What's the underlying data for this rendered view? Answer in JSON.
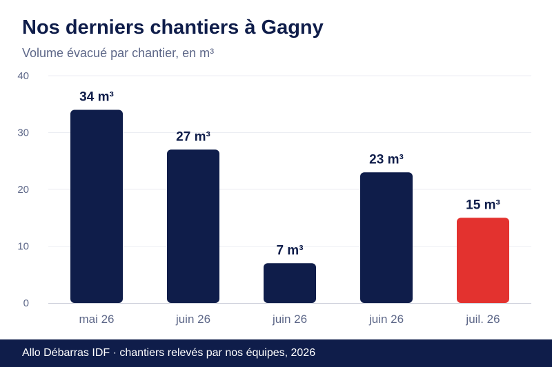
{
  "header": {
    "title": "Nos derniers chantiers à Gagny",
    "subtitle": "Volume évacué par chantier, en m³"
  },
  "footer": {
    "text": "Allo Débarras IDF · chantiers relevés par nos équipes, 2026"
  },
  "colors": {
    "bar": "#0f1d4a",
    "highlight": "#e3322f",
    "grid": "#eceef3",
    "axis": "#c9ccd8",
    "tick_text": "#5d6788",
    "label_text": "#0f1d4a"
  },
  "chart_data": {
    "type": "bar",
    "categories": [
      "mai 26",
      "juin 26",
      "juin 26",
      "juin 26",
      "juil. 26"
    ],
    "values": [
      34,
      27,
      7,
      23,
      15
    ],
    "value_labels": [
      "34 m³",
      "27 m³",
      "7 m³",
      "23 m³",
      "15 m³"
    ],
    "highlight_index": 4,
    "ylim": [
      0,
      40
    ],
    "yticks": [
      0,
      10,
      20,
      30,
      40
    ],
    "ytick_labels": [
      "0",
      "10",
      "20",
      "30",
      "40"
    ],
    "grid": true,
    "legend": "none"
  }
}
